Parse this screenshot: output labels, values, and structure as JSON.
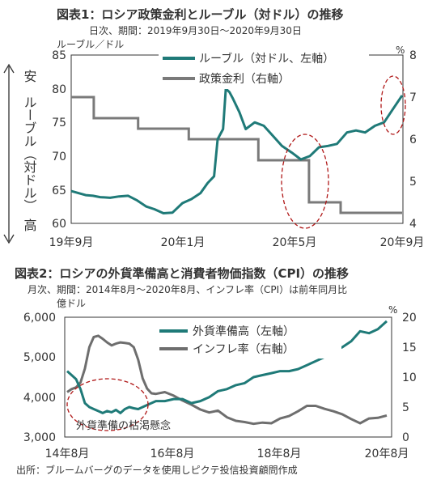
{
  "footer": {
    "source": "出所：ブルームバーグのデータを使用しピクテ投信投資顧問作成"
  },
  "chart_data": [
    {
      "type": "line",
      "title": "図表1：ロシア政策金利とルーブル（対ドル）の推移",
      "subtitle": "日次、期間：2019年9月30日～2020年9月30日",
      "y_left_unit": "ルーブル／ドル",
      "y_right_unit": "%",
      "ylabel_left": "安　ルーブル（対ドル）　高",
      "ylim_left": [
        60,
        85
      ],
      "ylim_right": [
        4,
        8
      ],
      "yticks_left": [
        "85",
        "80",
        "75",
        "70",
        "65",
        "60"
      ],
      "yticks_right": [
        "8",
        "7",
        "6",
        "5",
        "4"
      ],
      "xticks": [
        "19年9月",
        "20年1月",
        "20年5月",
        "20年9月"
      ],
      "xtick_dates": [
        "2019-09-30",
        "2020-01-31",
        "2020-05-31",
        "2020-09-30"
      ],
      "legend": "top-right",
      "annotation_circles": [
        "2020年5月前後",
        "2020年9月"
      ],
      "colors": {
        "ruble": "#1f7a78",
        "rate": "#7a7a7a",
        "axis": "#333333",
        "circle": "#b01818"
      },
      "series": [
        {
          "name": "ルーブル（対ドル、左軸）",
          "axis": "left",
          "points": [
            [
              "2019-09-30",
              64.8
            ],
            [
              "2019-10-08",
              64.5
            ],
            [
              "2019-10-16",
              64.2
            ],
            [
              "2019-10-24",
              64.1
            ],
            [
              "2019-11-01",
              63.9
            ],
            [
              "2019-11-12",
              63.8
            ],
            [
              "2019-11-22",
              64.0
            ],
            [
              "2019-12-02",
              64.1
            ],
            [
              "2019-12-12",
              63.4
            ],
            [
              "2019-12-22",
              62.5
            ],
            [
              "2019-12-31",
              62.1
            ],
            [
              "2020-01-10",
              61.5
            ],
            [
              "2020-01-20",
              61.6
            ],
            [
              "2020-01-31",
              63.0
            ],
            [
              "2020-02-10",
              63.6
            ],
            [
              "2020-02-20",
              64.5
            ],
            [
              "2020-02-28",
              66.0
            ],
            [
              "2020-03-06",
              67.0
            ],
            [
              "2020-03-10",
              72.5
            ],
            [
              "2020-03-16",
              74.0
            ],
            [
              "2020-03-19",
              80.0
            ],
            [
              "2020-03-23",
              79.5
            ],
            [
              "2020-03-27",
              78.5
            ],
            [
              "2020-04-03",
              76.5
            ],
            [
              "2020-04-10",
              74.0
            ],
            [
              "2020-04-20",
              75.0
            ],
            [
              "2020-04-30",
              74.5
            ],
            [
              "2020-05-10",
              73.0
            ],
            [
              "2020-05-20",
              71.5
            ],
            [
              "2020-05-31",
              70.5
            ],
            [
              "2020-06-10",
              69.5
            ],
            [
              "2020-06-20",
              70.0
            ],
            [
              "2020-06-30",
              71.3
            ],
            [
              "2020-07-10",
              71.5
            ],
            [
              "2020-07-20",
              71.8
            ],
            [
              "2020-07-31",
              73.5
            ],
            [
              "2020-08-10",
              73.8
            ],
            [
              "2020-08-20",
              73.5
            ],
            [
              "2020-08-31",
              74.5
            ],
            [
              "2020-09-10",
              75.0
            ],
            [
              "2020-09-20",
              77.0
            ],
            [
              "2020-09-30",
              79.0
            ]
          ]
        },
        {
          "name": "政策金利（右軸）",
          "axis": "right",
          "points": [
            [
              "2019-09-30",
              7.0
            ],
            [
              "2019-10-25",
              7.0
            ],
            [
              "2019-10-25",
              6.5
            ],
            [
              "2019-12-13",
              6.5
            ],
            [
              "2019-12-13",
              6.25
            ],
            [
              "2020-02-07",
              6.25
            ],
            [
              "2020-02-07",
              6.0
            ],
            [
              "2020-04-24",
              6.0
            ],
            [
              "2020-04-24",
              5.5
            ],
            [
              "2020-06-19",
              5.5
            ],
            [
              "2020-06-19",
              4.5
            ],
            [
              "2020-07-24",
              4.5
            ],
            [
              "2020-07-24",
              4.25
            ],
            [
              "2020-09-30",
              4.25
            ]
          ]
        }
      ]
    },
    {
      "type": "line",
      "title": "図表2：ロシアの外貨準備高と消費者物価指数（CPI）の推移",
      "subtitle": "月次、期間：2014年8月～2020年8月、インフレ率（CPI）は前年同月比",
      "y_left_unit": "億ドル",
      "y_right_unit": "%",
      "ylim_left": [
        3000,
        6000
      ],
      "ylim_right": [
        0,
        20
      ],
      "yticks_left": [
        "6,000",
        "5,000",
        "4,000",
        "3,000"
      ],
      "yticks_right": [
        "20",
        "15",
        "10",
        "5",
        "0"
      ],
      "xticks": [
        "14年8月",
        "16年8月",
        "18年8月",
        "20年8月"
      ],
      "xtick_months": [
        "2014-08",
        "2016-08",
        "2018-08",
        "2020-08"
      ],
      "legend": "top-right",
      "annotation": "外貨準備の枯渇懸念",
      "colors": {
        "reserves": "#1f7a78",
        "inflation": "#6e6e6e",
        "axis": "#333333",
        "circle": "#b01818"
      },
      "series": [
        {
          "name": "外貨準備高（左軸）",
          "axis": "left",
          "points": [
            [
              "2014-08",
              4650
            ],
            [
              "2014-09",
              4550
            ],
            [
              "2014-10",
              4450
            ],
            [
              "2014-11",
              4200
            ],
            [
              "2014-12",
              3850
            ],
            [
              "2015-01",
              3750
            ],
            [
              "2015-02",
              3700
            ],
            [
              "2015-03",
              3650
            ],
            [
              "2015-04",
              3600
            ],
            [
              "2015-05",
              3650
            ],
            [
              "2015-06",
              3620
            ],
            [
              "2015-07",
              3680
            ],
            [
              "2015-08",
              3600
            ],
            [
              "2015-09",
              3700
            ],
            [
              "2015-10",
              3750
            ],
            [
              "2015-11",
              3720
            ],
            [
              "2015-12",
              3700
            ],
            [
              "2016-02",
              3800
            ],
            [
              "2016-04",
              3900
            ],
            [
              "2016-06",
              3900
            ],
            [
              "2016-08",
              3950
            ],
            [
              "2016-10",
              3950
            ],
            [
              "2016-12",
              3850
            ],
            [
              "2017-02",
              3900
            ],
            [
              "2017-04",
              4000
            ],
            [
              "2017-06",
              4150
            ],
            [
              "2017-08",
              4200
            ],
            [
              "2017-10",
              4300
            ],
            [
              "2017-12",
              4350
            ],
            [
              "2018-02",
              4500
            ],
            [
              "2018-04",
              4550
            ],
            [
              "2018-06",
              4600
            ],
            [
              "2018-08",
              4650
            ],
            [
              "2018-10",
              4650
            ],
            [
              "2018-12",
              4700
            ],
            [
              "2019-02",
              4800
            ],
            [
              "2019-04",
              4900
            ],
            [
              "2019-06",
              5000
            ],
            [
              "2019-08",
              5150
            ],
            [
              "2019-10",
              5250
            ],
            [
              "2019-12",
              5400
            ],
            [
              "2020-02",
              5650
            ],
            [
              "2020-04",
              5600
            ],
            [
              "2020-06",
              5700
            ],
            [
              "2020-08",
              5900
            ]
          ]
        },
        {
          "name": "インフレ率（右軸）",
          "axis": "right",
          "points": [
            [
              "2014-08",
              7.5
            ],
            [
              "2014-09",
              8.0
            ],
            [
              "2014-10",
              8.3
            ],
            [
              "2014-11",
              9.1
            ],
            [
              "2014-12",
              11.4
            ],
            [
              "2015-01",
              15.0
            ],
            [
              "2015-02",
              16.7
            ],
            [
              "2015-03",
              16.9
            ],
            [
              "2015-04",
              16.4
            ],
            [
              "2015-05",
              15.8
            ],
            [
              "2015-06",
              15.3
            ],
            [
              "2015-07",
              15.6
            ],
            [
              "2015-08",
              15.8
            ],
            [
              "2015-09",
              15.7
            ],
            [
              "2015-10",
              15.6
            ],
            [
              "2015-11",
              15.0
            ],
            [
              "2015-12",
              12.9
            ],
            [
              "2016-01",
              9.8
            ],
            [
              "2016-02",
              8.1
            ],
            [
              "2016-03",
              7.3
            ],
            [
              "2016-04",
              7.2
            ],
            [
              "2016-06",
              7.5
            ],
            [
              "2016-08",
              6.9
            ],
            [
              "2016-10",
              6.1
            ],
            [
              "2016-12",
              5.4
            ],
            [
              "2017-02",
              4.6
            ],
            [
              "2017-04",
              4.1
            ],
            [
              "2017-06",
              4.4
            ],
            [
              "2017-08",
              3.3
            ],
            [
              "2017-10",
              2.7
            ],
            [
              "2017-12",
              2.5
            ],
            [
              "2018-02",
              2.2
            ],
            [
              "2018-04",
              2.4
            ],
            [
              "2018-06",
              2.3
            ],
            [
              "2018-08",
              3.1
            ],
            [
              "2018-10",
              3.5
            ],
            [
              "2018-12",
              4.3
            ],
            [
              "2019-02",
              5.2
            ],
            [
              "2019-04",
              5.2
            ],
            [
              "2019-06",
              4.7
            ],
            [
              "2019-08",
              4.3
            ],
            [
              "2019-10",
              3.8
            ],
            [
              "2019-12",
              3.0
            ],
            [
              "2020-02",
              2.3
            ],
            [
              "2020-04",
              3.1
            ],
            [
              "2020-06",
              3.2
            ],
            [
              "2020-08",
              3.6
            ]
          ]
        }
      ]
    }
  ]
}
